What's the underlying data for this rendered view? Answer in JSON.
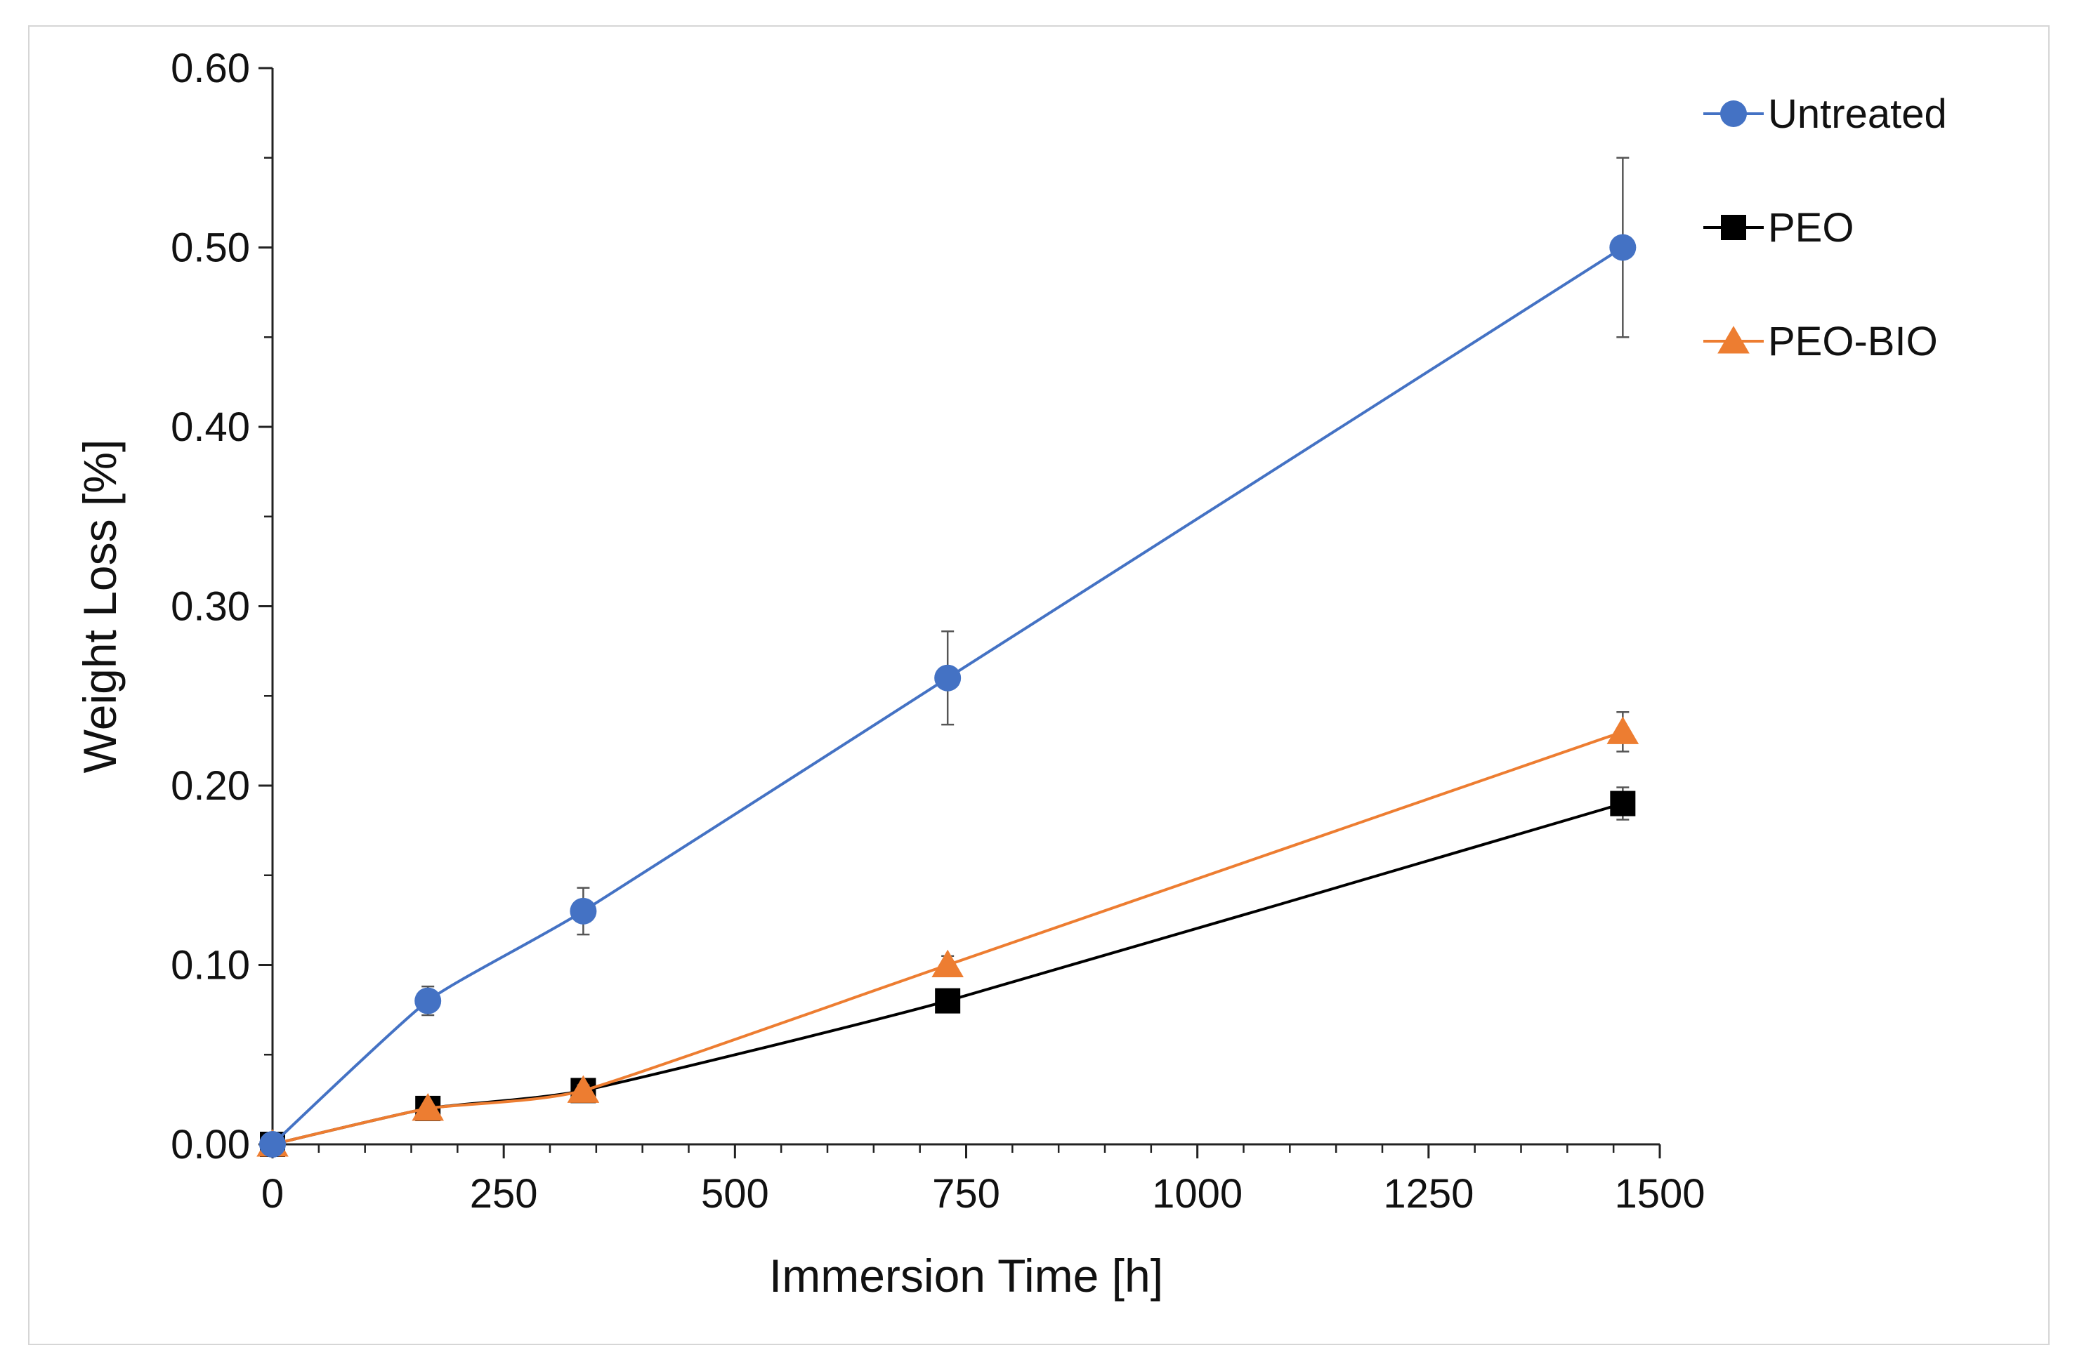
{
  "chart_data": {
    "type": "line",
    "title": "",
    "xlabel": "Immersion Time [h]",
    "ylabel": "Weight Loss [%]",
    "xlim": [
      0,
      1500
    ],
    "ylim": [
      0,
      0.6
    ],
    "x_ticks": [
      0,
      250,
      500,
      750,
      1000,
      1250,
      1500
    ],
    "x_tick_labels": [
      "0",
      "250",
      "500",
      "750",
      "1000",
      "1250",
      "1500"
    ],
    "y_ticks": [
      0,
      0.1,
      0.2,
      0.3,
      0.4,
      0.5,
      0.6
    ],
    "y_tick_labels": [
      "0.00",
      "0.10",
      "0.20",
      "0.30",
      "0.40",
      "0.50",
      "0.60"
    ],
    "grid": false,
    "legend_position": "top-right",
    "series": [
      {
        "name": "Untreated",
        "color": "#4472c4",
        "marker": "circle",
        "x": [
          0,
          168,
          336,
          730,
          1460
        ],
        "y": [
          0.0,
          0.08,
          0.13,
          0.26,
          0.5
        ],
        "error": [
          0.0,
          0.008,
          0.013,
          0.026,
          0.05
        ]
      },
      {
        "name": "PEO",
        "color": "#000000",
        "marker": "square",
        "x": [
          0,
          168,
          336,
          730,
          1460
        ],
        "y": [
          0.0,
          0.02,
          0.03,
          0.08,
          0.19
        ],
        "error": [
          0.0,
          0.002,
          0.003,
          0.006,
          0.009
        ]
      },
      {
        "name": "PEO-BIO",
        "color": "#ed7d31",
        "marker": "triangle",
        "x": [
          0,
          168,
          336,
          730,
          1460
        ],
        "y": [
          0.0,
          0.02,
          0.03,
          0.1,
          0.23
        ],
        "error": [
          0.0,
          0.002,
          0.003,
          0.005,
          0.011
        ]
      }
    ]
  }
}
